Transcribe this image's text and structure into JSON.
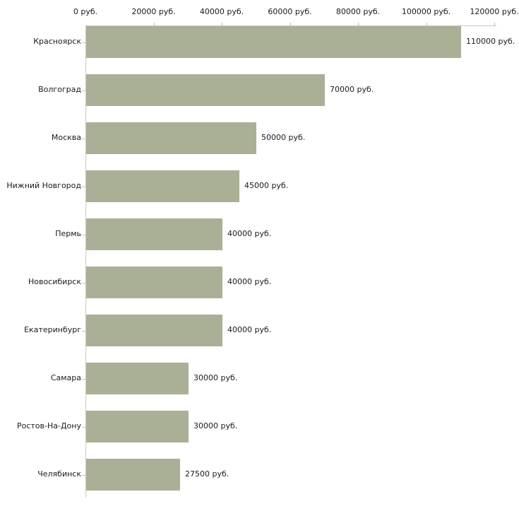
{
  "chart_data": {
    "type": "bar",
    "orientation": "horizontal",
    "title": "",
    "xlabel": "",
    "ylabel": "",
    "grid": false,
    "legend": null,
    "xlim": [
      0,
      120000
    ],
    "x_ticks": [
      0,
      20000,
      40000,
      60000,
      80000,
      100000,
      120000
    ],
    "x_tick_labels": [
      "0 руб.",
      "20000 руб.",
      "40000 руб.",
      "60000 руб.",
      "80000 руб.",
      "100000 руб.",
      "120000 руб."
    ],
    "categories": [
      "Красноярск",
      "Волгоград",
      "Москва",
      "Нижний Новгород",
      "Пермь",
      "Новосибирск",
      "Екатеринбург",
      "Самара",
      "Ростов-На-Дону",
      "Челябинск"
    ],
    "values": [
      110000,
      70000,
      50000,
      45000,
      40000,
      40000,
      40000,
      30000,
      30000,
      27500
    ],
    "value_labels": [
      "110000 руб.",
      "70000 руб.",
      "50000 руб.",
      "45000 руб.",
      "40000 руб.",
      "40000 руб.",
      "40000 руб.",
      "30000 руб.",
      "30000 руб.",
      "27500 руб."
    ],
    "colors": {
      "bar": "#aab096",
      "axis_line": "#c9c9c9",
      "x_tick_mark": "#bdbd9e",
      "category_tick_mark": "#c6c6aa",
      "text": "#1a1a1a",
      "background": "#ffffff"
    }
  }
}
